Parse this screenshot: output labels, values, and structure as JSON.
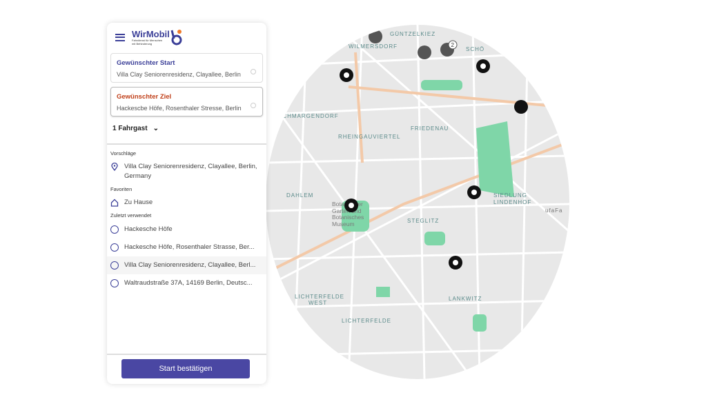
{
  "header": {
    "logo_title": "WirMobil",
    "logo_subtitle": "Fahrdienst für Menschen mit Behinderung"
  },
  "start": {
    "label": "Gewünschter Start",
    "value": "Villa Clay Seniorenresidenz, Clayallee, Berlin"
  },
  "ziel": {
    "label": "Gewünschter Ziel",
    "value": "Hackescbe Höfe, Rosenthaler Stresse, Berlin"
  },
  "passengers": "1 Fahrgast",
  "sections": {
    "suggestions": {
      "title": "Vorschläge",
      "items": [
        "Villa Clay Seniorenresidenz, Clayallee, Berlin, Germany"
      ]
    },
    "favorites": {
      "title": "Favoriten",
      "items": [
        "Zu Hause"
      ]
    },
    "recent": {
      "title": "Zuletzt verwendet",
      "items": [
        "Hackesche Höfe",
        "Hackesche Höfe, Rosenthaler Strasse, Ber...",
        "Villa Clay Seniorenresidenz, Clayallee, Berl...",
        "Waltraudstraße 37A, 14169 Berlin, Deutsc..."
      ]
    }
  },
  "confirm_button": "Start bestätigen",
  "map": {
    "labels": [
      "GÜNTZELKIEZ",
      "WILMERSDORF",
      "SCHÖ",
      "SCHMARGENDORF",
      "FRIEDENAU",
      "RHEINGAUVIERTEL",
      "DAHLEM",
      "STEGLITZ",
      "SIEDLUNG",
      "LINDENHOF",
      "LICHTERFELDE",
      "WEST",
      "LICHTERFELDE",
      "LANKWITZ",
      "Botanischer Garten und Botanisches Museum",
      "ufaFa"
    ],
    "cluster_count": "2"
  },
  "colors": {
    "accent": "#4a47a3",
    "ziel": "#c0401a",
    "park": "#7fd6a8",
    "road": "#f3c9a8"
  }
}
